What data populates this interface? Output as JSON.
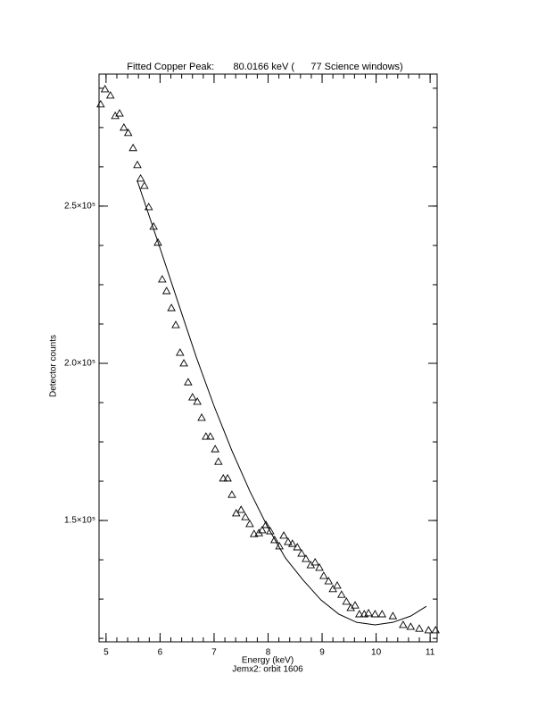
{
  "chart_data": {
    "type": "scatter",
    "title": "Fitted Copper Peak:       80.0166 keV (      77 Science windows)",
    "x_label": "Energy (keV)",
    "subtitle": "Jemx2: orbit 1606",
    "y_label": "Detector counts",
    "xlim": [
      4.87,
      11.13
    ],
    "ylim": [
      111400,
      292000
    ],
    "xticks": [
      5,
      6,
      7,
      8,
      9,
      10,
      11
    ],
    "yticks": [
      {
        "value": 150000,
        "label": "1.5×10⁵"
      },
      {
        "value": 200000,
        "label": "2.0×10⁵"
      },
      {
        "value": 250000,
        "label": "2.5×10⁵"
      }
    ],
    "xminor": 5,
    "yminor": 4,
    "series": [
      {
        "type": "scatter",
        "marker": "triangle",
        "color": "#000000",
        "x": [
          4.9,
          4.98,
          5.08,
          5.17,
          5.25,
          5.33,
          5.41,
          5.5,
          5.58,
          5.64,
          5.71,
          5.79,
          5.88,
          5.96,
          6.04,
          6.12,
          6.21,
          6.29,
          6.37,
          6.44,
          6.52,
          6.6,
          6.69,
          6.77,
          6.85,
          6.93,
          7.02,
          7.08,
          7.17,
          7.25,
          7.33,
          7.41,
          7.5,
          7.58,
          7.66,
          7.74,
          7.83,
          7.89,
          7.96,
          8.04,
          8.12,
          8.21,
          8.29,
          8.37,
          8.45,
          8.54,
          8.62,
          8.7,
          8.79,
          8.87,
          8.95,
          9.03,
          9.12,
          9.2,
          9.28,
          9.36,
          9.45,
          9.53,
          9.61,
          9.69,
          9.78,
          9.86,
          9.98,
          10.11,
          10.31,
          10.5,
          10.64,
          10.8,
          10.97,
          11.1
        ],
        "values": [
          282400,
          287200,
          285200,
          278700,
          279500,
          275000,
          273300,
          268500,
          263100,
          258800,
          256500,
          249700,
          243500,
          238400,
          226700,
          223000,
          217600,
          212200,
          203400,
          200000,
          194000,
          189200,
          187800,
          182700,
          176700,
          176700,
          172700,
          168700,
          163400,
          163400,
          158200,
          152300,
          153400,
          151100,
          148900,
          145700,
          146000,
          146900,
          148600,
          146600,
          143800,
          141800,
          145200,
          143200,
          142600,
          141500,
          139500,
          137800,
          135800,
          136700,
          135000,
          132400,
          130700,
          128200,
          129300,
          126400,
          124200,
          122200,
          123000,
          120200,
          120200,
          120500,
          120200,
          120200,
          119600,
          116800,
          116200,
          115600,
          115100,
          115100
        ]
      },
      {
        "type": "line",
        "color": "#000000",
        "x": [
          5.58,
          6.01,
          6.34,
          6.67,
          7.0,
          7.33,
          7.66,
          7.99,
          8.32,
          8.65,
          8.98,
          9.31,
          9.64,
          9.98,
          10.31,
          10.64,
          10.93
        ],
        "values": [
          258000,
          236100,
          219000,
          202000,
          186400,
          172200,
          159400,
          148000,
          138100,
          131000,
          124700,
          120200,
          117600,
          116800,
          117600,
          119600,
          122700
        ]
      }
    ]
  }
}
